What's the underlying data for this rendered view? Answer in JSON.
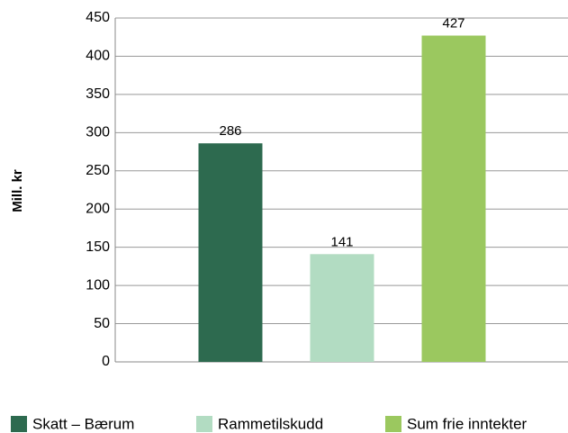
{
  "chart_data": {
    "type": "bar",
    "ylabel": "Mill. kr",
    "categories": [
      "Skatt – Bærum",
      "Rammetilskudd",
      "Sum frie inntekter"
    ],
    "values": [
      286,
      141,
      427
    ],
    "colors": [
      "#2d6a4f",
      "#b2dcc2",
      "#9bc85f"
    ],
    "ylim": [
      0,
      450
    ],
    "yticks": [
      0,
      50,
      100,
      150,
      200,
      250,
      300,
      350,
      400,
      450
    ],
    "grid": true,
    "legend": "bottom"
  }
}
